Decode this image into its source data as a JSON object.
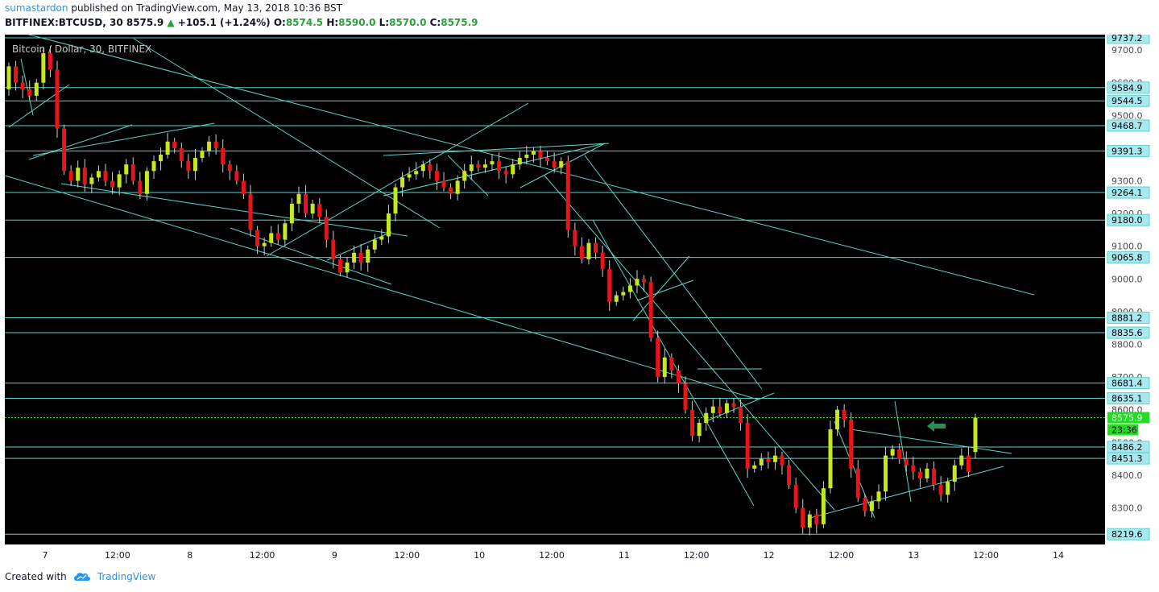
{
  "header": {
    "author": "sumastardon",
    "published_text": "published on TradingView.com, May 13, 2018 10:36 BST",
    "symbol": "BITFINEX:BTCUSD, 30",
    "last": "8575.9",
    "change": "+105.1 (+1.24%)",
    "o_label": "O:",
    "o_value": "8574.5",
    "h_label": "H:",
    "h_value": "8590.0",
    "l_label": "L:",
    "l_value": "8570.0",
    "c_label": "C:",
    "c_value": "8575.9"
  },
  "footer": {
    "created_with": "Created with",
    "brand": "TradingView"
  },
  "chart_data": {
    "type": "candlestick",
    "title": "Bitcoin / Dollar, 30, BITFINEX",
    "ylim": [
      8200,
      9750
    ],
    "y_ticks": [
      8300,
      8400,
      8500,
      8600,
      8700,
      8800,
      8900,
      9000,
      9100,
      9200,
      9300,
      9400,
      9500,
      9600,
      9700
    ],
    "x_tick_labels": [
      "7",
      "12:00",
      "8",
      "12:00",
      "9",
      "12:00",
      "10",
      "12:00",
      "11",
      "12:00",
      "12",
      "12:00",
      "13",
      "12:00",
      "14"
    ],
    "horizontal_levels": [
      9737.2,
      9584.9,
      9544.5,
      9468.7,
      9391.3,
      9264.1,
      9180.0,
      9065.8,
      8881.2,
      8835.6,
      8681.4,
      8635.1,
      8486.2,
      8451.3,
      8219.6
    ],
    "current_price": 8575.9,
    "countdown": "23:36",
    "colors": {
      "up": "#c6e81f",
      "down": "#e8141a",
      "lines": "#5ed4c8",
      "background": "#000000",
      "price": "#1ee21e"
    },
    "candle_closes": [
      9650,
      9600,
      9580,
      9560,
      9600,
      9690,
      9640,
      9460,
      9330,
      9300,
      9340,
      9290,
      9310,
      9330,
      9300,
      9280,
      9320,
      9350,
      9300,
      9260,
      9330,
      9360,
      9380,
      9420,
      9400,
      9360,
      9330,
      9370,
      9390,
      9420,
      9400,
      9350,
      9330,
      9300,
      9260,
      9150,
      9100,
      9110,
      9140,
      9120,
      9170,
      9230,
      9260,
      9200,
      9230,
      9190,
      9120,
      9060,
      9020,
      9050,
      9080,
      9050,
      9090,
      9120,
      9130,
      9200,
      9280,
      9310,
      9320,
      9330,
      9350,
      9330,
      9300,
      9280,
      9260,
      9300,
      9330,
      9350,
      9340,
      9350,
      9360,
      9330,
      9320,
      9350,
      9370,
      9380,
      9390,
      9370,
      9360,
      9340,
      9360,
      9150,
      9100,
      9060,
      9110,
      9080,
      9030,
      8930,
      8950,
      8960,
      8980,
      9000,
      8990,
      8820,
      8700,
      8760,
      8720,
      8680,
      8600,
      8520,
      8560,
      8590,
      8610,
      8590,
      8620,
      8610,
      8560,
      8420,
      8430,
      8450,
      8440,
      8460,
      8430,
      8370,
      8300,
      8240,
      8280,
      8250,
      8360,
      8540,
      8600,
      8570,
      8420,
      8330,
      8290,
      8320,
      8350,
      8460,
      8480,
      8450,
      8430,
      8410,
      8390,
      8420,
      8370,
      8340,
      8380,
      8430,
      8460,
      8410,
      8575.9
    ]
  }
}
